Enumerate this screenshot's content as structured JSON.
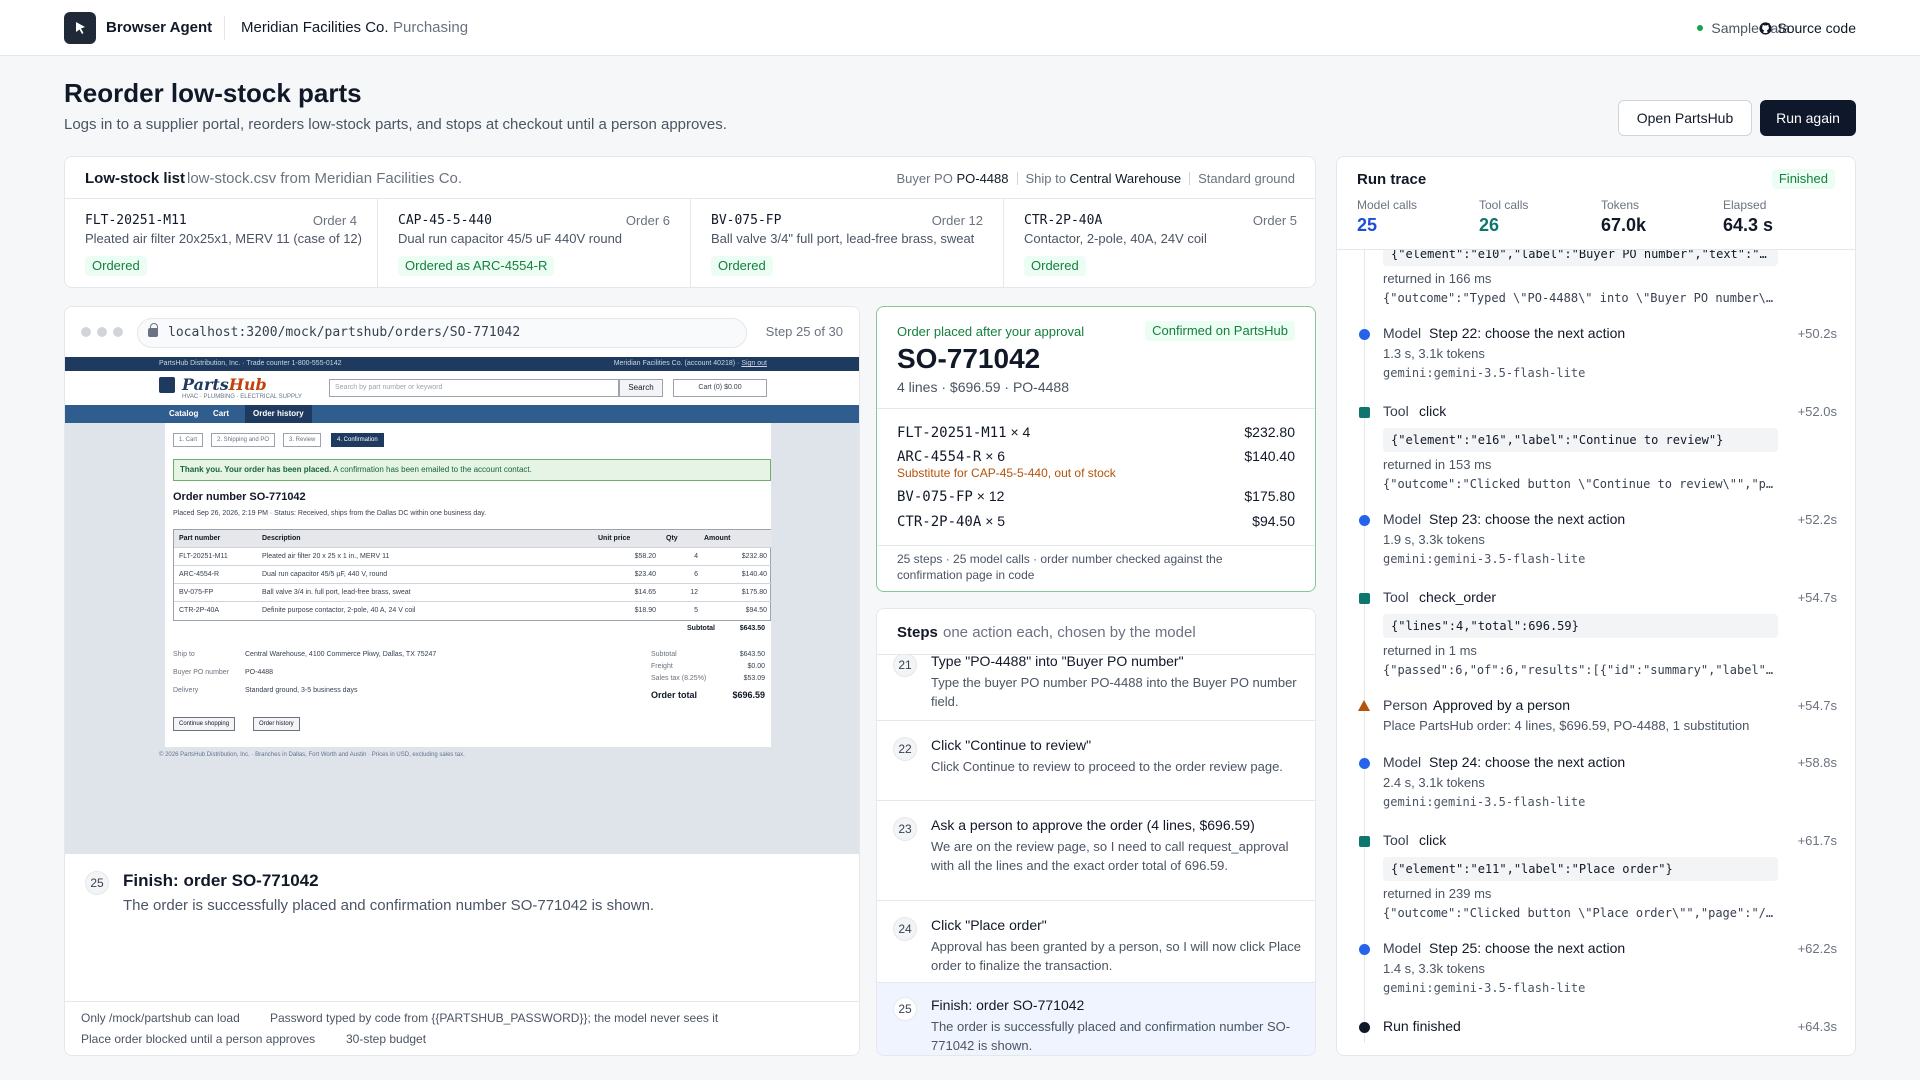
{
  "header": {
    "brand": "Browser Agent",
    "org": "Meridian Facilities Co.",
    "dept": "Purchasing",
    "sample": "Sample data",
    "source": "Source code"
  },
  "page": {
    "title": "Reorder low-stock parts",
    "subtitle": "Logs in to a supplier portal, reorders low-stock parts, and stops at checkout until a person approves.",
    "open_btn": "Open PartsHub",
    "run_btn": "Run again"
  },
  "lowstock": {
    "title": "Low-stock list",
    "file": "low-stock.csv from Meridian Facilities Co.",
    "meta": {
      "po_label": "Buyer PO",
      "po": "PO-4488",
      "ship_label": "Ship to",
      "ship": "Central Warehouse",
      "delivery": "Standard ground"
    },
    "parts": [
      {
        "pn": "FLT-20251-M11",
        "order": "Order 4",
        "desc": "Pleated air filter 20x25x1, MERV 11 (case of 12)",
        "status": "Ordered"
      },
      {
        "pn": "CAP-45-5-440",
        "order": "Order 6",
        "desc": "Dual run capacitor 45/5 uF 440V round",
        "status": "Ordered as ARC-4554-R"
      },
      {
        "pn": "BV-075-FP",
        "order": "Order 12",
        "desc": "Ball valve 3/4\" full port, lead-free brass, sweat",
        "status": "Ordered"
      },
      {
        "pn": "CTR-2P-40A",
        "order": "Order 5",
        "desc": "Contactor, 2-pole, 40A, 24V coil",
        "status": "Ordered"
      }
    ]
  },
  "browser": {
    "url": "localhost:3200/mock/partshub/orders/SO-771042",
    "step": "Step 25 of 30",
    "site": {
      "topbar_left": "PartsHub Distribution, Inc. · Trade counter 1-800-555-0142",
      "topbar_right": "Meridian Facilities Co. (account 40218) ·",
      "signout": "Sign out",
      "name_a": "Parts",
      "name_b": "Hub",
      "tagline": "HVAC · PLUMBING · ELECTRICAL SUPPLY",
      "search_ph": "Search by part number or keyword",
      "search_btn": "Search",
      "cart": "Cart (0) $0.00",
      "nav": [
        "Catalog",
        "Cart",
        "Order history"
      ],
      "crumbs": [
        "1. Cart",
        "2. Shipping and PO",
        "3. Review",
        "4. Confirmation"
      ],
      "thanks_b": "Thank you. Your order has been placed.",
      "thanks": "A confirmation has been emailed to the account contact.",
      "order_title": "Order number SO-771042",
      "placed": "Placed Sep 26, 2026, 2:19 PM · Status: Received, ships from the Dallas DC within one business day.",
      "cols": [
        "Part number",
        "Description",
        "Unit price",
        "Qty",
        "Amount"
      ],
      "rows": [
        [
          "FLT-20251-M11",
          "Pleated air filter 20 x 25 x 1 in., MERV 11",
          "$58.20",
          "4",
          "$232.80"
        ],
        [
          "ARC-4554-R",
          "Dual run capacitor 45/5 µF, 440 V, round",
          "$23.40",
          "6",
          "$140.40"
        ],
        [
          "BV-075-FP",
          "Ball valve 3/4 in. full port, lead-free brass, sweat",
          "$14.65",
          "12",
          "$175.80"
        ],
        [
          "CTR-2P-40A",
          "Definite purpose contactor, 2-pole, 40 A, 24 V coil",
          "$18.90",
          "5",
          "$94.50"
        ]
      ],
      "subtotal_label": "Subtotal",
      "subtotal": "$643.50",
      "ship_label": "Ship to",
      "ship": "Central Warehouse, 4100 Commerce Pkwy, Dallas, TX 75247",
      "po_label": "Buyer PO number",
      "po": "PO-4488",
      "delivery_label": "Delivery",
      "delivery": "Standard ground, 3-5 business days",
      "sum": [
        [
          "Subtotal",
          "$643.50"
        ],
        [
          "Freight",
          "$0.00"
        ],
        [
          "Sales tax (8.25%)",
          "$53.09"
        ]
      ],
      "total_label": "Order total",
      "total": "$696.59",
      "btn_continue": "Continue shopping",
      "btn_history": "Order history",
      "footer": "© 2026 PartsHub Distribution, Inc. · Branches in Dallas, Fort Worth and Austin · Prices in USD, excluding sales tax."
    },
    "current": {
      "n": "25",
      "title": "Finish: order SO-771042",
      "desc": "The order is successfully placed and confirmation number SO-771042 is shown."
    },
    "footer": {
      "f1": "Only /mock/partshub can load",
      "f2": "Password typed by code from {{PARTSHUB_PASSWORD}}; the model never sees it",
      "f3": "Place order blocked until a person approves",
      "f4": "30-step budget"
    }
  },
  "order": {
    "label": "Order placed after your approval",
    "badge": "Confirmed on PartsHub",
    "number": "SO-771042",
    "summary": "4 lines · $696.59 · PO-4488",
    "lines": [
      {
        "pn": "FLT-20251-M11",
        "qty": "× 4",
        "amount": "$232.80"
      },
      {
        "pn": "ARC-4554-R",
        "qty": "× 6",
        "amount": "$140.40",
        "note": "Substitute for CAP-45-5-440, out of stock"
      },
      {
        "pn": "BV-075-FP",
        "qty": "× 12",
        "amount": "$175.80"
      },
      {
        "pn": "CTR-2P-40A",
        "qty": "× 5",
        "amount": "$94.50"
      }
    ],
    "footer": "25 steps · 25 model calls · order number checked against the confirmation page in code"
  },
  "steps": {
    "title": "Steps",
    "sub": "one action each, chosen by the model",
    "items": [
      {
        "n": "21",
        "title": "Type \"PO-4488\" into \"Buyer PO number\"",
        "desc": "Type the buyer PO number PO-4488 into the Buyer PO number field."
      },
      {
        "n": "22",
        "title": "Click \"Continue to review\"",
        "desc": "Click Continue to review to proceed to the order review page."
      },
      {
        "n": "23",
        "title": "Ask a person to approve the order (4 lines, $696.59)",
        "desc": "We are on the review page, so I need to call request_approval with all the lines and the exact order total of 696.59."
      },
      {
        "n": "24",
        "title": "Click \"Place order\"",
        "desc": "Approval has been granted by a person, so I will now click Place order to finalize the transaction."
      },
      {
        "n": "25",
        "title": "Finish: order SO-771042",
        "desc": "The order is successfully placed and confirmation number SO-771042 is shown."
      }
    ]
  },
  "trace": {
    "title": "Run trace",
    "badge": "Finished",
    "stats": [
      {
        "label": "Model calls",
        "value": "25"
      },
      {
        "label": "Tool calls",
        "value": "26"
      },
      {
        "label": "Tokens",
        "value": "67.0k"
      },
      {
        "label": "Elapsed",
        "value": "64.3 s"
      }
    ],
    "top": {
      "code": "{\"element\":\"e10\",\"label\":\"Buyer PO number\",\"text\":\"…",
      "ret": "returned in 166 ms",
      "out": "{\"outcome\":\"Typed \\\"PO-4488\\\" into \\\"Buyer PO number\\…"
    },
    "e22": {
      "kind": "Model",
      "name": "Step 22: choose the next action",
      "time": "+50.2s",
      "stats": "1.3 s, 3.1k tokens",
      "model": "gemini:gemini-3.5-flash-lite"
    },
    "t1": {
      "kind": "Tool",
      "name": "click",
      "time": "+52.0s",
      "code": "{\"element\":\"e16\",\"label\":\"Continue to review\"}",
      "ret": "returned in 153 ms",
      "out": "{\"outcome\":\"Clicked button \\\"Continue to review\\\"\",\"p…"
    },
    "e23": {
      "kind": "Model",
      "name": "Step 23: choose the next action",
      "time": "+52.2s",
      "stats": "1.9 s, 3.3k tokens",
      "model": "gemini:gemini-3.5-flash-lite"
    },
    "t2": {
      "kind": "Tool",
      "name": "check_order",
      "time": "+54.7s",
      "code": "{\"lines\":4,\"total\":696.59}",
      "ret": "returned in 1 ms",
      "out": "{\"passed\":6,\"of\":6,\"results\":[{\"id\":\"summary\",\"label\"…"
    },
    "p": {
      "kind": "Person",
      "name": "Approved by a person",
      "time": "+54.7s",
      "desc": "Place PartsHub order: 4 lines, $696.59, PO-4488, 1 substitution"
    },
    "e24": {
      "kind": "Model",
      "name": "Step 24: choose the next action",
      "time": "+58.8s",
      "stats": "2.4 s, 3.1k tokens",
      "model": "gemini:gemini-3.5-flash-lite"
    },
    "t3": {
      "kind": "Tool",
      "name": "click",
      "time": "+61.7s",
      "code": "{\"element\":\"e11\",\"label\":\"Place order\"}",
      "ret": "returned in 239 ms",
      "out": "{\"outcome\":\"Clicked button \\\"Place order\\\"\",\"page\":\"/…"
    },
    "e25": {
      "kind": "Model",
      "name": "Step 25: choose the next action",
      "time": "+62.2s",
      "stats": "1.4 s, 3.3k tokens",
      "model": "gemini:gemini-3.5-flash-lite"
    },
    "end": {
      "name": "Run finished",
      "time": "+64.3s"
    }
  }
}
